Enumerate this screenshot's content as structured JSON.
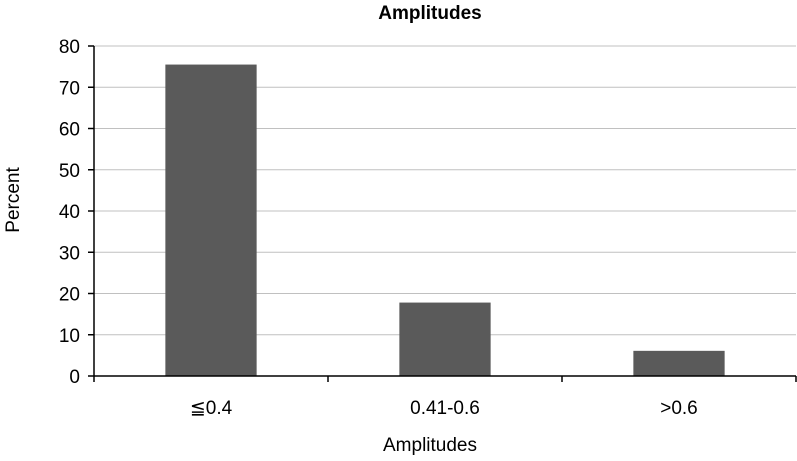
{
  "chart_data": {
    "type": "bar",
    "title": "Amplitudes",
    "xlabel": "Amplitudes",
    "ylabel": "Percent",
    "categories": [
      "≦0.4",
      "0.41-0.6",
      ">0.6"
    ],
    "values": [
      75.5,
      17.8,
      6.1
    ],
    "ylim": [
      0,
      80
    ],
    "yticks": [
      0,
      10,
      20,
      30,
      40,
      50,
      60,
      70,
      80
    ],
    "grid": true,
    "legend": "none",
    "bar_color": "#5a5a5a",
    "grid_color": "#c0c0c0"
  }
}
